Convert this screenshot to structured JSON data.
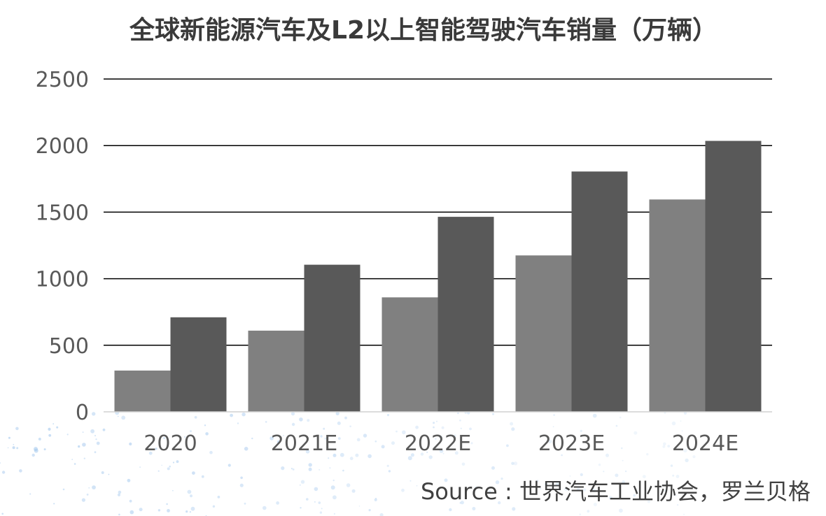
{
  "chart_data": {
    "type": "bar",
    "title": "全球新能源汽车及L2以上智能驾驶汽车销量（万辆）",
    "categories": [
      "2020",
      "2021E",
      "2022E",
      "2023E",
      "2024E"
    ],
    "series": [
      {
        "values": [
          310,
          610,
          860,
          1175,
          1595
        ],
        "color": "#808080"
      },
      {
        "values": [
          710,
          1105,
          1465,
          1805,
          2035
        ],
        "color": "#595959"
      }
    ],
    "ylim": [
      0,
      2500
    ],
    "yticks": [
      "0",
      "500",
      "1000",
      "1500",
      "2000",
      "2500"
    ],
    "grid": true,
    "legend": "none",
    "xlabel": "",
    "ylabel": ""
  },
  "source": "Source : 世界汽车工业协会，罗兰贝格"
}
